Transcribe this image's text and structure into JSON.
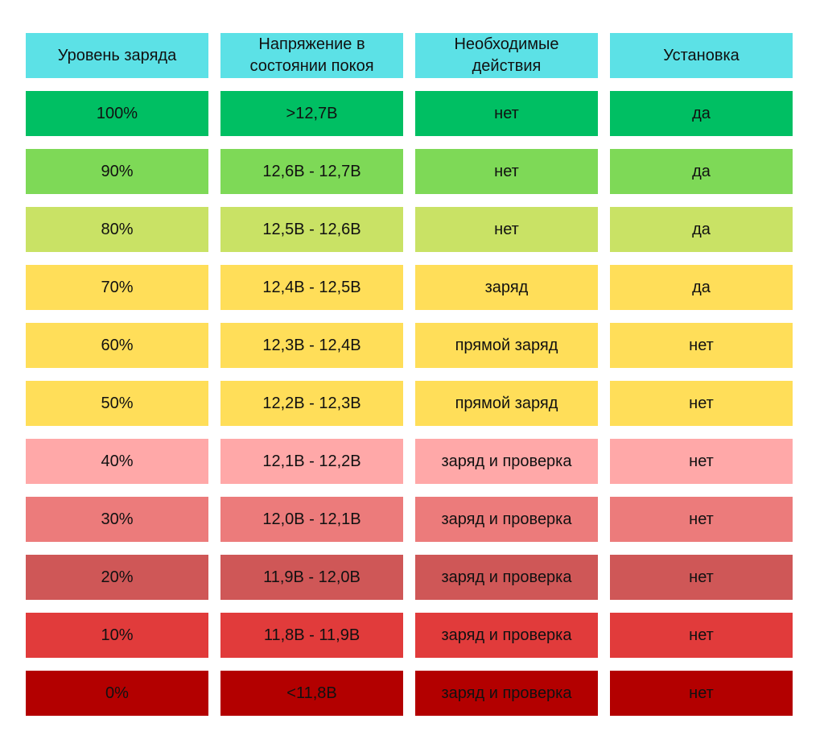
{
  "chart_data": {
    "type": "table",
    "columns": [
      "Уровень заряда",
      "Напряжение в состоянии покоя",
      "Необходимые действия",
      "Установка"
    ],
    "header_color": "#5ce1e6",
    "rows": [
      {
        "cells": [
          "100%",
          ">12,7В",
          "нет",
          "да"
        ],
        "color": "#00bf63"
      },
      {
        "cells": [
          "90%",
          "12,6В - 12,7В",
          "нет",
          "да"
        ],
        "color": "#7ed957"
      },
      {
        "cells": [
          "80%",
          "12,5В - 12,6В",
          "нет",
          "да"
        ],
        "color": "#c9e265"
      },
      {
        "cells": [
          "70%",
          "12,4В - 12,5В",
          "заряд",
          "да"
        ],
        "color": "#ffde59"
      },
      {
        "cells": [
          "60%",
          "12,3В - 12,4В",
          "прямой заряд",
          "нет"
        ],
        "color": "#ffde59"
      },
      {
        "cells": [
          "50%",
          "12,2В - 12,3В",
          "прямой заряд",
          "нет"
        ],
        "color": "#ffde59"
      },
      {
        "cells": [
          "40%",
          "12,1В - 12,2В",
          "заряд и проверка",
          "нет"
        ],
        "color": "#ffa8a8"
      },
      {
        "cells": [
          "30%",
          "12,0В - 12,1В",
          "заряд и проверка",
          "нет"
        ],
        "color": "#ec7b7b"
      },
      {
        "cells": [
          "20%",
          "11,9В - 12,0В",
          "заряд и проверка",
          "нет"
        ],
        "color": "#cf5757"
      },
      {
        "cells": [
          "10%",
          "11,8В - 11,9В",
          "заряд и проверка",
          "нет"
        ],
        "color": "#e13b3b"
      },
      {
        "cells": [
          "0%",
          "<11,8В",
          "заряд и проверка",
          "нет"
        ],
        "color": "#b30000"
      }
    ]
  }
}
